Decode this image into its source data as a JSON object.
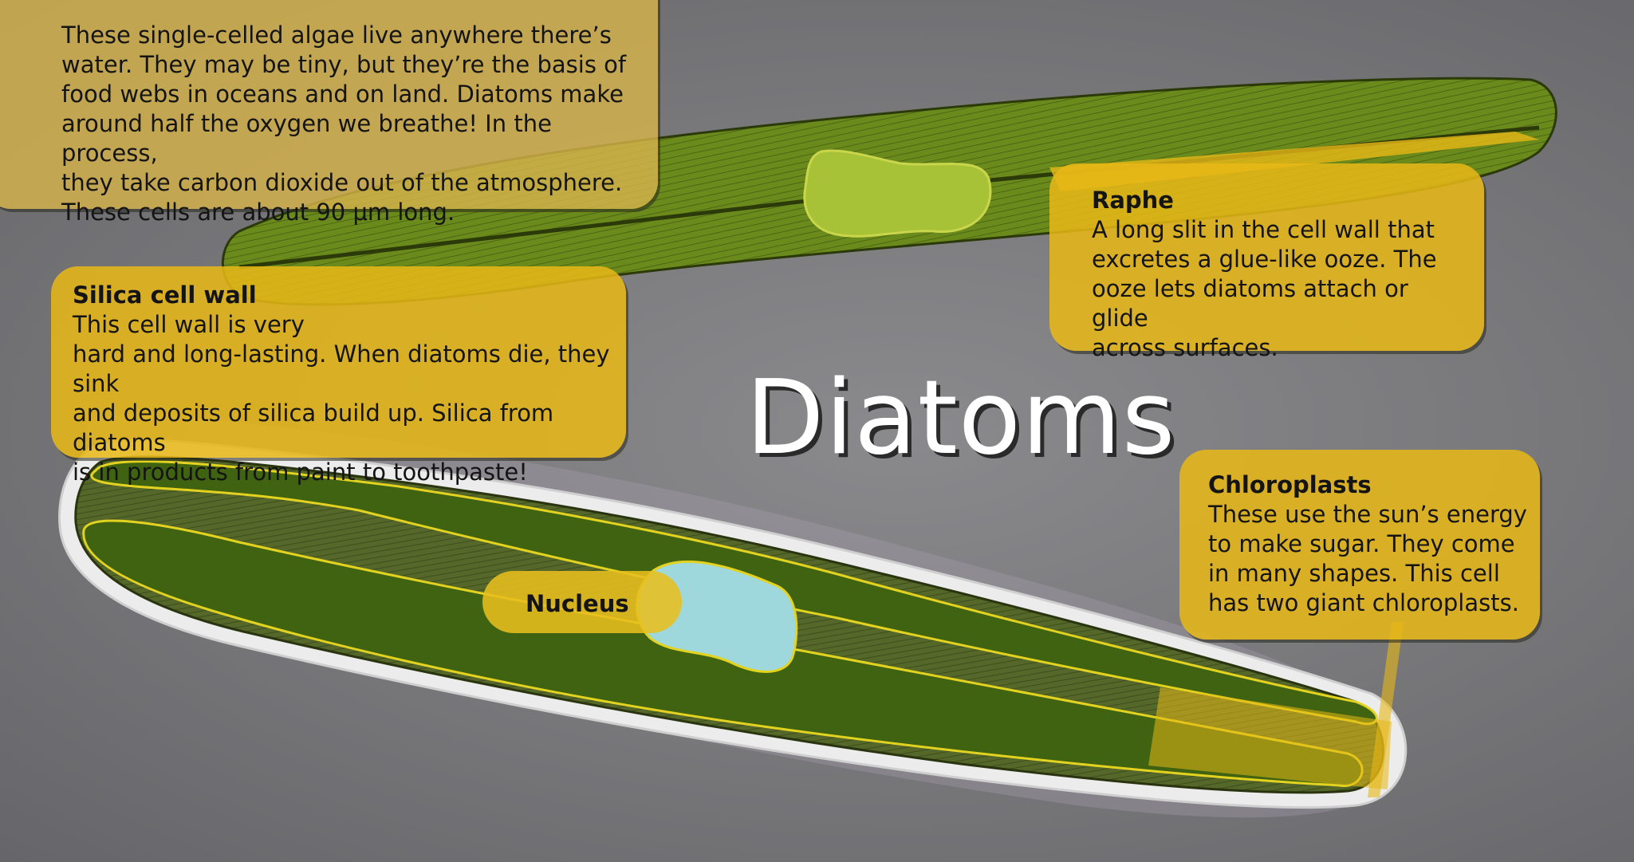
{
  "title": "Diatoms",
  "intro": {
    "lines": [
      "These single-celled algae live anywhere there’s",
      "water. They may be tiny, but they’re the basis of",
      "food webs in oceans and on land. Diatoms make",
      "around half the oxygen we breathe! In the process,",
      "they take carbon dioxide out of the atmosphere.",
      "These cells are about 90 μm long."
    ]
  },
  "labels": {
    "silica": {
      "heading": "Silica cell wall",
      "lines": [
        "This cell wall is very",
        "hard and long-lasting. When diatoms die, they sink",
        "and deposits of silica build up. Silica from diatoms",
        "is in products from paint to toothpaste!"
      ]
    },
    "raphe": {
      "heading": "Raphe",
      "lines": [
        "A long slit in the cell wall that",
        "excretes a glue-like ooze. The",
        "ooze lets diatoms attach or glide",
        "across surfaces."
      ]
    },
    "chloroplasts": {
      "heading": "Chloroplasts",
      "lines": [
        "These use the sun’s energy",
        "to make sugar. They come",
        "in many shapes. This cell",
        "has two giant chloroplasts."
      ]
    },
    "nucleus": {
      "heading": "Nucleus"
    }
  },
  "colors": {
    "background": "#77777a",
    "cell_green": "#3f6310",
    "upper_cell_green": "#6b8a1c",
    "callout_yellow": "#e8b816",
    "nucleus_blue": "#9fd8dc",
    "title_text": "#ffffff"
  }
}
